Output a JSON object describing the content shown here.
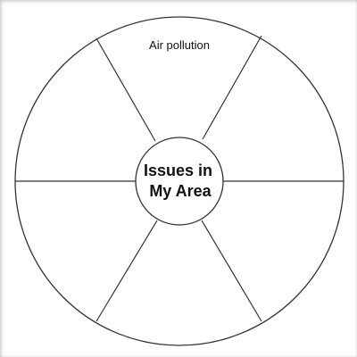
{
  "diagram": {
    "center": {
      "lines": [
        "Issues in",
        "My Area"
      ]
    },
    "segments": [
      {
        "label": "Air pollution"
      },
      {
        "label": ""
      },
      {
        "label": ""
      },
      {
        "label": ""
      },
      {
        "label": ""
      },
      {
        "label": ""
      }
    ]
  }
}
